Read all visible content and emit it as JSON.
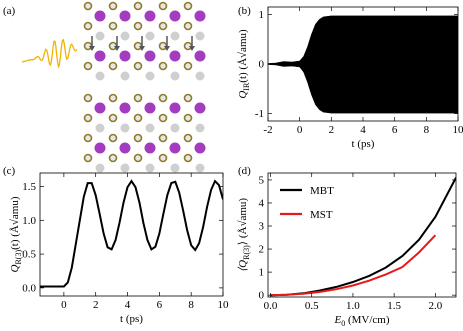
{
  "illustration": {
    "label": "(a)"
  },
  "chart_data": [
    {
      "type": "band",
      "label": "(b)",
      "x": [
        -2,
        -1.5,
        -1,
        -0.5,
        0,
        0.25,
        0.5,
        0.75,
        1,
        1.25,
        1.5,
        2,
        3,
        4,
        5,
        6,
        7,
        8,
        9,
        10
      ],
      "upper": [
        0.01,
        0.02,
        0.05,
        0.04,
        0.06,
        0.15,
        0.35,
        0.6,
        0.8,
        0.9,
        0.95,
        0.97,
        0.97,
        0.97,
        0.97,
        0.97,
        0.97,
        0.97,
        0.97,
        0.97
      ],
      "lower": [
        -0.01,
        -0.02,
        -0.05,
        -0.04,
        -0.06,
        -0.16,
        -0.37,
        -0.62,
        -0.82,
        -0.92,
        -0.97,
        -0.99,
        -0.99,
        -0.99,
        -0.99,
        -0.99,
        -0.99,
        -0.99,
        -0.99,
        -0.99
      ],
      "color": "#000000",
      "xlim": [
        -2,
        10
      ],
      "ylim": [
        -1.15,
        1.15
      ],
      "xticks": [
        -2,
        0,
        2,
        4,
        6,
        8,
        10
      ],
      "yticks": [
        -1,
        0,
        1
      ],
      "xlabel": "t (ps)",
      "ylabel": {
        "symbol": "Q",
        "sub": "IR",
        "rest": "(t)  (Å√amu)"
      }
    },
    {
      "type": "line",
      "label": "(c)",
      "x": [
        -1.5,
        -1,
        -0.5,
        0,
        0.25,
        0.5,
        0.75,
        1,
        1.25,
        1.5,
        1.75,
        2,
        2.25,
        2.5,
        2.75,
        3,
        3.25,
        3.5,
        3.75,
        4,
        4.25,
        4.5,
        4.75,
        5,
        5.25,
        5.5,
        5.75,
        6,
        6.25,
        6.5,
        6.75,
        7,
        7.25,
        7.5,
        7.75,
        8,
        8.25,
        8.5,
        8.75,
        9,
        9.25,
        9.5,
        9.75,
        10
      ],
      "values": [
        0.02,
        0.02,
        0.02,
        0.02,
        0.08,
        0.3,
        0.65,
        1.0,
        1.35,
        1.55,
        1.55,
        1.37,
        1.09,
        0.8,
        0.6,
        0.57,
        0.71,
        0.97,
        1.26,
        1.49,
        1.58,
        1.49,
        1.26,
        0.96,
        0.71,
        0.57,
        0.61,
        0.8,
        1.09,
        1.37,
        1.55,
        1.57,
        1.41,
        1.14,
        0.85,
        0.63,
        0.56,
        0.66,
        0.9,
        1.2,
        1.45,
        1.58,
        1.52,
        1.31
      ],
      "color": "#000000",
      "xlim": [
        -1.5,
        10
      ],
      "ylim": [
        -0.12,
        1.7
      ],
      "xticks": [
        0,
        2,
        4,
        6,
        8,
        10
      ],
      "yticks": [
        {
          "value": 0,
          "label": "0.0"
        },
        0.5,
        {
          "value": 1,
          "label": "1.0"
        },
        1.5
      ],
      "xlabel": "t (ps)",
      "ylabel": {
        "symbol": "Q",
        "sub": "R(3)",
        "rest": "(t)  (Å√amu)"
      }
    },
    {
      "type": "line",
      "label": "(d)",
      "series": [
        {
          "name": "MBT",
          "color": "#000000",
          "x": [
            0,
            0.2,
            0.4,
            0.6,
            0.8,
            1.0,
            1.2,
            1.4,
            1.6,
            1.8,
            2.0,
            2.25
          ],
          "values": [
            0,
            0.02,
            0.08,
            0.2,
            0.36,
            0.57,
            0.84,
            1.2,
            1.7,
            2.4,
            3.4,
            5.1
          ]
        },
        {
          "name": "MST",
          "color": "#e8191b",
          "x": [
            0,
            0.2,
            0.4,
            0.6,
            0.8,
            1.0,
            1.2,
            1.4,
            1.6,
            1.8,
            2.0
          ],
          "values": [
            0,
            0.02,
            0.06,
            0.14,
            0.26,
            0.42,
            0.63,
            0.9,
            1.22,
            1.85,
            2.6
          ]
        }
      ],
      "legend": "upper left",
      "xlim": [
        -0.03,
        2.25
      ],
      "ylim": [
        -0.08,
        5.3
      ],
      "xticks": [
        {
          "value": 0,
          "label": "0.0"
        },
        0.5,
        {
          "value": 1,
          "label": "1.0"
        },
        1.5,
        {
          "value": 2,
          "label": "2.0"
        }
      ],
      "yticks": [
        0,
        1,
        2,
        3,
        4,
        5
      ],
      "xlabel": {
        "symbol": "E",
        "sub": "0",
        "rest": "  (MV/cm)"
      },
      "ylabel": {
        "symbol": "⟨Q",
        "sub": "R(3)",
        "rest": "⟩  (Å√amu)"
      }
    }
  ]
}
